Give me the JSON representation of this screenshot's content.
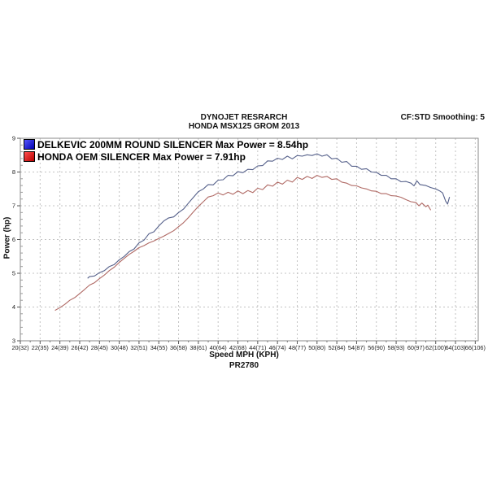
{
  "header": {
    "title_line1": "DYNOJET RESRARCH",
    "title_line2": "HONDA MSX125 GROM 2013",
    "correction_info": "CF:STD Smoothing: 5"
  },
  "legend": {
    "items": [
      {
        "label": "DELKEVIC 200MM ROUND SILENCER Max Power = 8.54hp",
        "swatch_colors": [
          "#5555ff",
          "#0000b0"
        ]
      },
      {
        "label": "HONDA OEM SILENCER Max Power = 7.91hp",
        "swatch_colors": [
          "#ff5050",
          "#b80000"
        ]
      }
    ]
  },
  "footer": {
    "x_axis_title": "Speed MPH (KPH)",
    "run_code": "PR2780"
  },
  "y_axis_title": "Power (hp)",
  "chart_data": {
    "type": "line",
    "title": "DYNOJET RESRARCH",
    "subtitle": "HONDA MSX125 GROM 2013",
    "xlabel": "Speed MPH (KPH)",
    "ylabel": "Power (hp)",
    "xlim": [
      20,
      66.3
    ],
    "ylim": [
      3,
      9
    ],
    "grid": "dashed both axes, 2 mph vertical / 1 hp horizontal",
    "legend_position": "top-left inside plot",
    "x_ticks_mph": [
      20,
      22,
      24,
      26,
      28,
      30,
      32,
      34,
      36,
      38,
      40,
      42,
      44,
      46,
      48,
      50,
      52,
      54,
      56,
      58,
      60,
      62,
      64,
      66
    ],
    "x_tick_labels": [
      "20(32)",
      "22(35)",
      "24(39)",
      "26(42)",
      "28(45)",
      "30(48)",
      "32(51)",
      "34(55)",
      "36(58)",
      "38(61)",
      "40(64)",
      "42(68)",
      "44(71)",
      "46(74)",
      "48(77)",
      "50(80)",
      "52(84)",
      "54(87)",
      "56(90)",
      "58(93)",
      "60(97)",
      "62(100)",
      "64(103)",
      "66(106)"
    ],
    "y_ticks": [
      3,
      4,
      5,
      6,
      7,
      8,
      9
    ],
    "series": [
      {
        "name": "DELKEVIC 200MM ROUND SILENCER",
        "max_power_hp": 8.54,
        "color": "#55608a",
        "points": [
          [
            26.8,
            4.85
          ],
          [
            27,
            4.9
          ],
          [
            27.5,
            4.92
          ],
          [
            28,
            5.02
          ],
          [
            28.5,
            5.08
          ],
          [
            29,
            5.2
          ],
          [
            29.5,
            5.26
          ],
          [
            30,
            5.4
          ],
          [
            30.5,
            5.5
          ],
          [
            31,
            5.64
          ],
          [
            31.5,
            5.72
          ],
          [
            32,
            5.9
          ],
          [
            32.5,
            5.98
          ],
          [
            33,
            6.17
          ],
          [
            33.5,
            6.23
          ],
          [
            34,
            6.4
          ],
          [
            34.5,
            6.55
          ],
          [
            35,
            6.64
          ],
          [
            35.5,
            6.67
          ],
          [
            36,
            6.8
          ],
          [
            36.5,
            6.9
          ],
          [
            37,
            7.08
          ],
          [
            37.5,
            7.25
          ],
          [
            38,
            7.42
          ],
          [
            38.5,
            7.5
          ],
          [
            39,
            7.63
          ],
          [
            39.5,
            7.62
          ],
          [
            40,
            7.76
          ],
          [
            40.5,
            7.77
          ],
          [
            41,
            7.9
          ],
          [
            41.5,
            7.89
          ],
          [
            42,
            8.01
          ],
          [
            42.5,
            7.98
          ],
          [
            43,
            8.08
          ],
          [
            43.5,
            8.07
          ],
          [
            44,
            8.18
          ],
          [
            44.5,
            8.19
          ],
          [
            45,
            8.33
          ],
          [
            45.5,
            8.32
          ],
          [
            46,
            8.41
          ],
          [
            46.5,
            8.37
          ],
          [
            47,
            8.47
          ],
          [
            47.5,
            8.39
          ],
          [
            48,
            8.49
          ],
          [
            48.5,
            8.47
          ],
          [
            49,
            8.51
          ],
          [
            49.5,
            8.49
          ],
          [
            50,
            8.54
          ],
          [
            50.5,
            8.47
          ],
          [
            51,
            8.51
          ],
          [
            51.5,
            8.39
          ],
          [
            52,
            8.41
          ],
          [
            52.5,
            8.29
          ],
          [
            53,
            8.31
          ],
          [
            53.5,
            8.17
          ],
          [
            54,
            8.17
          ],
          [
            54.5,
            8.08
          ],
          [
            55,
            8.1
          ],
          [
            55.5,
            8.0
          ],
          [
            56,
            7.99
          ],
          [
            56.5,
            7.9
          ],
          [
            57,
            7.9
          ],
          [
            57.5,
            7.8
          ],
          [
            58,
            7.8
          ],
          [
            58.5,
            7.71
          ],
          [
            59,
            7.72
          ],
          [
            59.5,
            7.67
          ],
          [
            59.8,
            7.59
          ],
          [
            60.1,
            7.74
          ],
          [
            60.4,
            7.63
          ],
          [
            61,
            7.6
          ],
          [
            61.5,
            7.54
          ],
          [
            62,
            7.5
          ],
          [
            62.4,
            7.44
          ],
          [
            62.7,
            7.38
          ],
          [
            63,
            7.14
          ],
          [
            63.2,
            7.05
          ],
          [
            63.4,
            7.26
          ]
        ]
      },
      {
        "name": "HONDA OEM SILENCER",
        "max_power_hp": 7.91,
        "color": "#b06a65",
        "points": [
          [
            23.5,
            3.9
          ],
          [
            24,
            3.98
          ],
          [
            24.5,
            4.08
          ],
          [
            25,
            4.2
          ],
          [
            25.5,
            4.28
          ],
          [
            26,
            4.4
          ],
          [
            26.5,
            4.52
          ],
          [
            27,
            4.65
          ],
          [
            27.5,
            4.72
          ],
          [
            28,
            4.84
          ],
          [
            28.5,
            4.95
          ],
          [
            29,
            5.08
          ],
          [
            29.5,
            5.18
          ],
          [
            30,
            5.32
          ],
          [
            30.5,
            5.44
          ],
          [
            31,
            5.56
          ],
          [
            31.5,
            5.65
          ],
          [
            32,
            5.76
          ],
          [
            32.5,
            5.82
          ],
          [
            33,
            5.9
          ],
          [
            33.5,
            5.96
          ],
          [
            34,
            6.03
          ],
          [
            34.5,
            6.1
          ],
          [
            35,
            6.18
          ],
          [
            35.5,
            6.26
          ],
          [
            36,
            6.38
          ],
          [
            36.5,
            6.5
          ],
          [
            37,
            6.65
          ],
          [
            37.5,
            6.82
          ],
          [
            38,
            6.98
          ],
          [
            38.5,
            7.12
          ],
          [
            39,
            7.26
          ],
          [
            39.5,
            7.3
          ],
          [
            40,
            7.38
          ],
          [
            40.5,
            7.32
          ],
          [
            41,
            7.4
          ],
          [
            41.5,
            7.34
          ],
          [
            42,
            7.44
          ],
          [
            42.5,
            7.36
          ],
          [
            43,
            7.45
          ],
          [
            43.5,
            7.39
          ],
          [
            44,
            7.52
          ],
          [
            44.5,
            7.48
          ],
          [
            45,
            7.62
          ],
          [
            45.5,
            7.58
          ],
          [
            46,
            7.7
          ],
          [
            46.5,
            7.64
          ],
          [
            47,
            7.76
          ],
          [
            47.5,
            7.7
          ],
          [
            48,
            7.84
          ],
          [
            48.5,
            7.78
          ],
          [
            49,
            7.87
          ],
          [
            49.5,
            7.81
          ],
          [
            50,
            7.9
          ],
          [
            50.5,
            7.84
          ],
          [
            51,
            7.87
          ],
          [
            51.5,
            7.78
          ],
          [
            52,
            7.8
          ],
          [
            52.5,
            7.7
          ],
          [
            53,
            7.67
          ],
          [
            53.5,
            7.6
          ],
          [
            54,
            7.59
          ],
          [
            54.5,
            7.53
          ],
          [
            55,
            7.5
          ],
          [
            55.5,
            7.44
          ],
          [
            56,
            7.43
          ],
          [
            56.5,
            7.36
          ],
          [
            57,
            7.36
          ],
          [
            57.5,
            7.3
          ],
          [
            58,
            7.29
          ],
          [
            58.5,
            7.25
          ],
          [
            59,
            7.18
          ],
          [
            59.5,
            7.12
          ],
          [
            60,
            7.1
          ],
          [
            60.3,
            7.0
          ],
          [
            60.6,
            7.08
          ],
          [
            61,
            6.97
          ],
          [
            61.2,
            7.02
          ],
          [
            61.5,
            6.87
          ]
        ]
      }
    ]
  }
}
